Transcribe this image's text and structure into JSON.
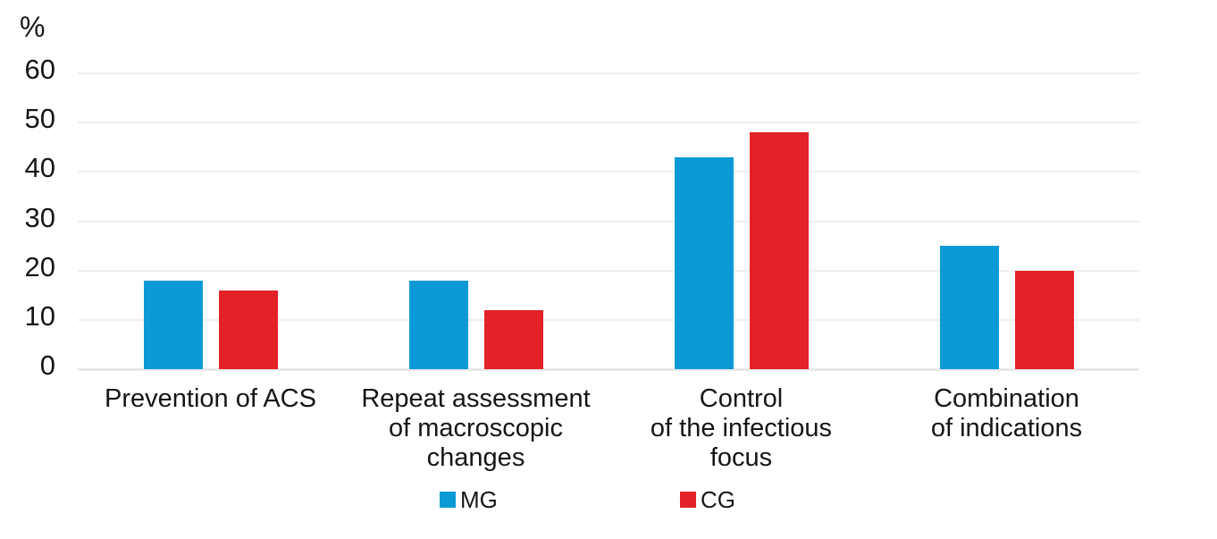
{
  "chart_data": {
    "type": "bar",
    "title": "",
    "xlabel": "",
    "ylabel": "%",
    "categories": [
      "Prevention of ACS",
      "Repeat assessment\nof macroscopic\nchanges",
      "Control\nof the infectious\nfocus",
      "Combination\nof indications"
    ],
    "series": [
      {
        "name": "MG",
        "color": "#0C9AD7",
        "values": [
          18,
          18,
          43,
          25
        ]
      },
      {
        "name": "CG",
        "color": "#E32127",
        "values": [
          16,
          12,
          48,
          20
        ]
      }
    ],
    "yticks": [
      0,
      10,
      20,
      30,
      40,
      50,
      60
    ],
    "ylim": [
      0,
      60
    ],
    "grid": true,
    "legend_position": "bottom"
  }
}
